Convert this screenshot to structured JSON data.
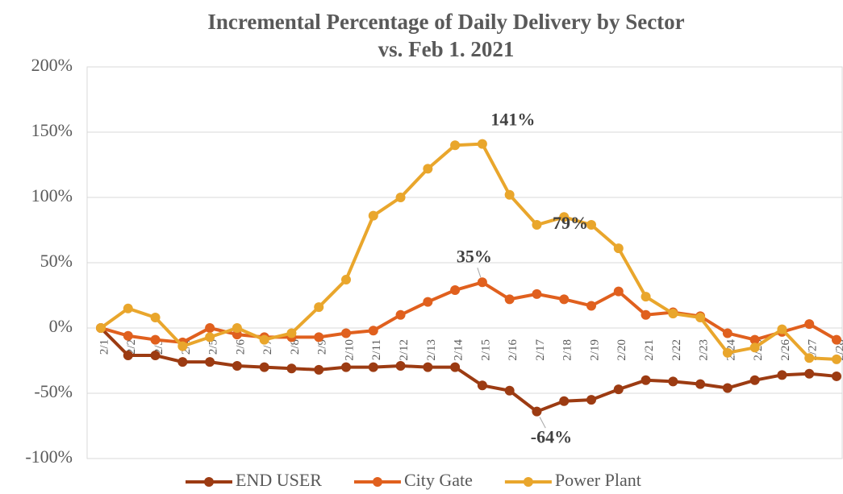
{
  "chart_data": {
    "type": "line",
    "title": [
      "Incremental Percentage of Daily Delivery by Sector",
      "vs. Feb 1. 2021"
    ],
    "categories": [
      "2/1",
      "2/2",
      "2/3",
      "2/4",
      "2/5",
      "2/6",
      "2/7",
      "2/8",
      "2/9",
      "2/10",
      "2/11",
      "2/12",
      "2/13",
      "2/14",
      "2/15",
      "2/16",
      "2/17",
      "2/18",
      "2/19",
      "2/20",
      "2/21",
      "2/22",
      "2/23",
      "2/24",
      "2/25",
      "2/26",
      "2/27",
      "2/28"
    ],
    "series": [
      {
        "name": "END USER",
        "color": "#9c3b12",
        "values": [
          0,
          -21,
          -21,
          -26,
          -26,
          -29,
          -30,
          -31,
          -32,
          -30,
          -30,
          -29,
          -30,
          -30,
          -44,
          -48,
          -64,
          -56,
          -55,
          -47,
          -40,
          -41,
          -43,
          -46,
          -40,
          -36,
          -35,
          -37
        ],
        "value_labels": [
          null,
          null,
          null,
          null,
          null,
          null,
          null,
          null,
          null,
          null,
          null,
          null,
          null,
          null,
          null,
          null,
          "-64%",
          null,
          null,
          null,
          null,
          null,
          null,
          null,
          null,
          null,
          null,
          null
        ]
      },
      {
        "name": "City Gate",
        "color": "#e0601e",
        "values": [
          0,
          -6,
          -9,
          -11,
          0,
          -5,
          -7,
          -7,
          -7,
          -4,
          -2,
          10,
          20,
          29,
          35,
          22,
          26,
          22,
          17,
          28,
          10,
          12,
          9,
          -4,
          -9,
          -3,
          3,
          -9
        ],
        "value_labels": [
          null,
          null,
          null,
          null,
          null,
          null,
          null,
          null,
          null,
          null,
          null,
          null,
          null,
          null,
          "35%",
          null,
          null,
          null,
          null,
          null,
          null,
          null,
          null,
          null,
          null,
          null,
          null,
          null
        ]
      },
      {
        "name": "Power Plant",
        "color": "#e9a62c",
        "values": [
          0,
          15,
          8,
          -14,
          -7,
          0,
          -9,
          -4,
          16,
          37,
          86,
          100,
          122,
          140,
          141,
          102,
          79,
          85,
          79,
          61,
          24,
          11,
          8,
          -19,
          -15,
          -1,
          -23,
          -24
        ],
        "value_labels": [
          null,
          null,
          null,
          null,
          null,
          null,
          null,
          null,
          null,
          null,
          null,
          null,
          null,
          null,
          "141%",
          null,
          null,
          null,
          "79%",
          null,
          null,
          null,
          null,
          null,
          null,
          null,
          null,
          null
        ]
      }
    ],
    "ylim": [
      -100,
      200
    ],
    "yticks": [
      {
        "value": -100,
        "label": "-100%"
      },
      {
        "value": -50,
        "label": "-50%"
      },
      {
        "value": 0,
        "label": "0%"
      },
      {
        "value": 50,
        "label": "50%"
      },
      {
        "value": 100,
        "label": "100%"
      },
      {
        "value": 150,
        "label": "150%"
      },
      {
        "value": 200,
        "label": "200%"
      }
    ],
    "grid": true,
    "legend": "bottom"
  }
}
